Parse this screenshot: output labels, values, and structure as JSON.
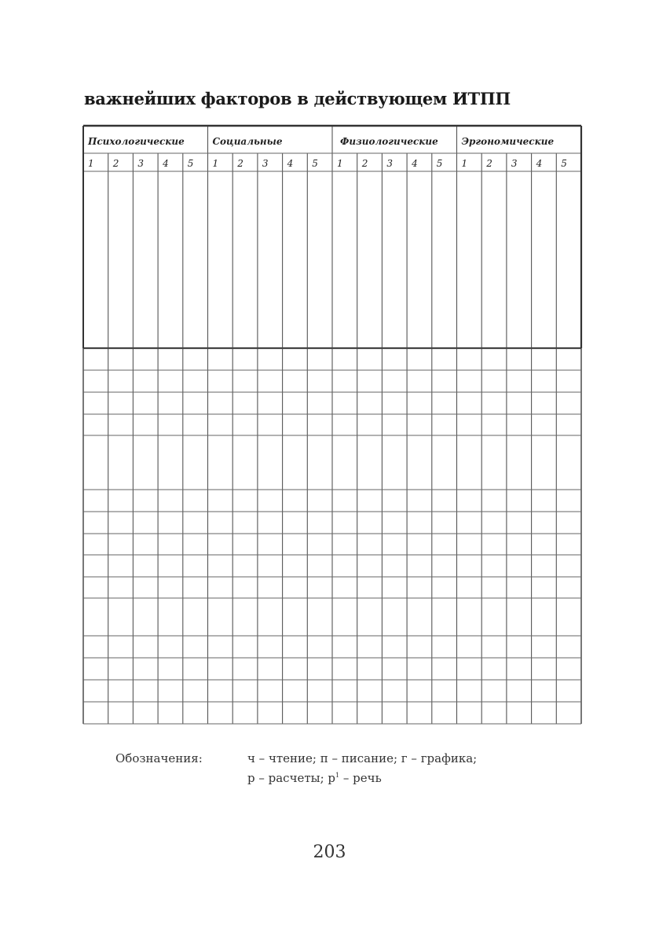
{
  "page": {
    "title": "важнейших факторов в действующем ИТПП",
    "page_number": "203"
  },
  "table": {
    "groups": [
      {
        "label": "Психологические",
        "columns": [
          "1",
          "2",
          "3",
          "4",
          "5"
        ]
      },
      {
        "label": "Социальные",
        "columns": [
          "1",
          "2",
          "3",
          "4",
          "5"
        ]
      },
      {
        "label": "Физиологические",
        "columns": [
          "1",
          "2",
          "3",
          "4",
          "5"
        ]
      },
      {
        "label": "Эргономические",
        "columns": [
          "1",
          "2",
          "3",
          "4",
          "5"
        ]
      }
    ]
  },
  "legend": {
    "label": "Обозначения:",
    "line1": "ч – чтение; п – писание; г – графика;",
    "line2_a": "р – расчеты; р",
    "line2_sup": "1",
    "line2_b": " – речь"
  }
}
